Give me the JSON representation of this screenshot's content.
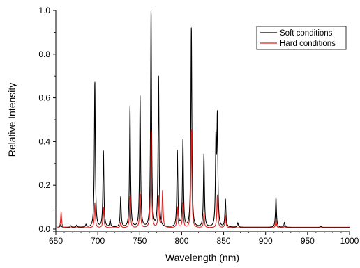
{
  "chart_data": {
    "type": "line",
    "title": "",
    "xlabel": "Wavelength (nm)",
    "ylabel": "Relative Intensity",
    "xlim": [
      650,
      1000
    ],
    "ylim": [
      0,
      1.0
    ],
    "x_ticks": [
      650,
      700,
      750,
      800,
      850,
      900,
      950,
      1000
    ],
    "y_ticks": [
      0.0,
      0.2,
      0.4,
      0.6,
      0.8,
      1.0
    ],
    "x_tick_labels": [
      "650",
      "700",
      "750",
      "800",
      "850",
      "900",
      "950",
      "1000"
    ],
    "y_tick_labels": [
      "0.0",
      "0.2",
      "0.4",
      "0.6",
      "0.8",
      "1.0"
    ],
    "grid": false,
    "legend_position": "top-right",
    "series": [
      {
        "name": "Soft conditions",
        "color": "#000000",
        "baseline": 0.008,
        "peaks": [
          [
            656,
            0.02
          ],
          [
            668,
            0.015
          ],
          [
            675,
            0.018
          ],
          [
            686,
            0.02
          ],
          [
            696.5,
            0.675
          ],
          [
            706.7,
            0.357
          ],
          [
            714.7,
            0.04
          ],
          [
            727.3,
            0.145
          ],
          [
            738.4,
            0.56
          ],
          [
            750.4,
            0.605
          ],
          [
            763.5,
            1.0
          ],
          [
            772.4,
            0.7
          ],
          [
            794.8,
            0.355
          ],
          [
            801.5,
            0.408
          ],
          [
            811.5,
            0.925
          ],
          [
            826.5,
            0.343
          ],
          [
            840.8,
            0.385
          ],
          [
            842.5,
            0.49
          ],
          [
            852.1,
            0.134
          ],
          [
            866.8,
            0.028
          ],
          [
            912.3,
            0.145
          ],
          [
            922.5,
            0.03
          ],
          [
            965.8,
            0.013
          ]
        ]
      },
      {
        "name": "Hard conditions",
        "color": "#e0201b",
        "baseline": 0.006,
        "peaks": [
          [
            656.3,
            0.08
          ],
          [
            696.5,
            0.12
          ],
          [
            706.7,
            0.1
          ],
          [
            727.3,
            0.03
          ],
          [
            738.4,
            0.15
          ],
          [
            750.4,
            0.16
          ],
          [
            763.5,
            0.45
          ],
          [
            772.4,
            0.15
          ],
          [
            777.2,
            0.175
          ],
          [
            794.8,
            0.1
          ],
          [
            801.5,
            0.12
          ],
          [
            811.5,
            0.455
          ],
          [
            826.5,
            0.07
          ],
          [
            842.5,
            0.155
          ],
          [
            852.1,
            0.06
          ],
          [
            912.3,
            0.04
          ],
          [
            922.5,
            0.012
          ]
        ]
      }
    ]
  }
}
